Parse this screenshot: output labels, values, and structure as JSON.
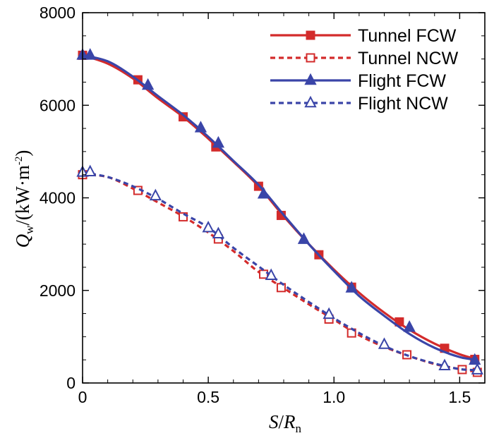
{
  "chart_data": {
    "type": "line",
    "title": "",
    "xlabel": {
      "var": "S",
      "slash": "/",
      "sub_var": "R",
      "sub": "n"
    },
    "ylabel": {
      "var": "Q",
      "sub": "w",
      "unit_prefix": "/(kW·m",
      "unit_exp": "-2",
      "unit_suffix": ")"
    },
    "xlim": [
      0,
      1.6
    ],
    "ylim": [
      0,
      8000
    ],
    "xticks": [
      0,
      0.5,
      1.0,
      1.5
    ],
    "xtick_labels": [
      "0",
      "0.5",
      "1.0",
      "1.5"
    ],
    "yticks": [
      0,
      2000,
      4000,
      6000,
      8000
    ],
    "ytick_labels": [
      "0",
      "2000",
      "4000",
      "6000",
      "8000"
    ],
    "grid": false,
    "legend_position": "top-right",
    "series": [
      {
        "name": "Tunnel FCW",
        "color": "#d32b2b",
        "line_style": "solid",
        "marker": "square-filled",
        "curve": [
          [
            0,
            7080
          ],
          [
            0.1,
            6900
          ],
          [
            0.2,
            6580
          ],
          [
            0.3,
            6150
          ],
          [
            0.4,
            5750
          ],
          [
            0.5,
            5280
          ],
          [
            0.6,
            4780
          ],
          [
            0.7,
            4250
          ],
          [
            0.8,
            3600
          ],
          [
            0.9,
            3000
          ],
          [
            1.0,
            2450
          ],
          [
            1.1,
            1950
          ],
          [
            1.2,
            1520
          ],
          [
            1.3,
            1150
          ],
          [
            1.4,
            850
          ],
          [
            1.5,
            620
          ],
          [
            1.57,
            510
          ]
        ],
        "markers": [
          [
            0,
            7080
          ],
          [
            0.22,
            6550
          ],
          [
            0.4,
            5750
          ],
          [
            0.53,
            5100
          ],
          [
            0.7,
            4250
          ],
          [
            0.79,
            3620
          ],
          [
            0.94,
            2770
          ],
          [
            1.07,
            2070
          ],
          [
            1.26,
            1320
          ],
          [
            1.44,
            750
          ],
          [
            1.56,
            510
          ]
        ]
      },
      {
        "name": "Tunnel NCW",
        "color": "#d32b2b",
        "line_style": "dashed",
        "marker": "square-open",
        "curve": [
          [
            0,
            4500
          ],
          [
            0.1,
            4450
          ],
          [
            0.2,
            4200
          ],
          [
            0.3,
            3900
          ],
          [
            0.4,
            3600
          ],
          [
            0.5,
            3250
          ],
          [
            0.6,
            2850
          ],
          [
            0.7,
            2400
          ],
          [
            0.8,
            2050
          ],
          [
            0.9,
            1700
          ],
          [
            1.0,
            1370
          ],
          [
            1.1,
            1030
          ],
          [
            1.2,
            780
          ],
          [
            1.3,
            580
          ],
          [
            1.4,
            410
          ],
          [
            1.5,
            300
          ],
          [
            1.57,
            240
          ]
        ],
        "markers": [
          [
            0,
            4500
          ],
          [
            0.22,
            4160
          ],
          [
            0.4,
            3590
          ],
          [
            0.54,
            3110
          ],
          [
            0.72,
            2350
          ],
          [
            0.79,
            2060
          ],
          [
            0.98,
            1380
          ],
          [
            1.07,
            1080
          ],
          [
            1.29,
            610
          ],
          [
            1.51,
            290
          ],
          [
            1.57,
            230
          ]
        ]
      },
      {
        "name": "Flight FCW",
        "color": "#3a45a8",
        "line_style": "solid",
        "marker": "triangle-filled",
        "curve": [
          [
            0,
            7080
          ],
          [
            0.1,
            6950
          ],
          [
            0.2,
            6620
          ],
          [
            0.3,
            6200
          ],
          [
            0.4,
            5790
          ],
          [
            0.5,
            5320
          ],
          [
            0.6,
            4800
          ],
          [
            0.7,
            4280
          ],
          [
            0.8,
            3630
          ],
          [
            0.9,
            3000
          ],
          [
            1.0,
            2420
          ],
          [
            1.1,
            1880
          ],
          [
            1.2,
            1450
          ],
          [
            1.3,
            1060
          ],
          [
            1.4,
            760
          ],
          [
            1.5,
            560
          ],
          [
            1.57,
            500
          ]
        ],
        "markers": [
          [
            0,
            7080
          ],
          [
            0.03,
            7080
          ],
          [
            0.26,
            6430
          ],
          [
            0.47,
            5510
          ],
          [
            0.54,
            5180
          ],
          [
            0.72,
            4080
          ],
          [
            0.88,
            3100
          ],
          [
            1.07,
            2050
          ],
          [
            1.3,
            1200
          ],
          [
            1.56,
            490
          ]
        ]
      },
      {
        "name": "Flight NCW",
        "color": "#3a45a8",
        "line_style": "dashed",
        "marker": "triangle-open",
        "curve": [
          [
            0,
            4550
          ],
          [
            0.1,
            4450
          ],
          [
            0.2,
            4250
          ],
          [
            0.3,
            3980
          ],
          [
            0.4,
            3660
          ],
          [
            0.5,
            3360
          ],
          [
            0.6,
            2920
          ],
          [
            0.7,
            2520
          ],
          [
            0.8,
            2120
          ],
          [
            0.9,
            1750
          ],
          [
            1.0,
            1400
          ],
          [
            1.1,
            1080
          ],
          [
            1.2,
            800
          ],
          [
            1.3,
            580
          ],
          [
            1.4,
            420
          ],
          [
            1.5,
            300
          ],
          [
            1.57,
            280
          ]
        ],
        "markers": [
          [
            0,
            4550
          ],
          [
            0.03,
            4560
          ],
          [
            0.29,
            4040
          ],
          [
            0.5,
            3350
          ],
          [
            0.54,
            3220
          ],
          [
            0.75,
            2320
          ],
          [
            0.98,
            1480
          ],
          [
            1.2,
            830
          ],
          [
            1.44,
            370
          ],
          [
            1.57,
            280
          ]
        ]
      }
    ]
  }
}
